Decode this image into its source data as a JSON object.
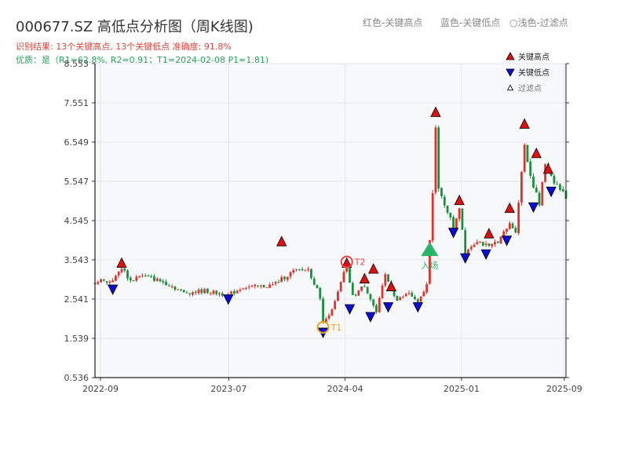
{
  "header": {
    "title": "000677.SZ 高低点分析图（周K线图)",
    "legend_red": "红色-关键高点",
    "legend_blue": "蓝色-关键低点",
    "legend_circle": "○浅色-过滤点",
    "info_line1": "识别结果: 13个关键高点, 13个关键低点  准确度: 91.8%",
    "info_line2": "优质：是（R1=62.8%, R2=0.91；T1=2024-02-08 P1=1.81)"
  },
  "colors": {
    "up": "#e0312b",
    "down": "#1a8f3c",
    "high_marker": "#e01010",
    "low_marker": "#0a0ad8",
    "t1": "#f0a020",
    "t2": "#e54545",
    "entry": "#2bb36a",
    "grid": "#e3e6ea",
    "plot_bg": "#f7f8fa"
  },
  "chart_data": {
    "type": "candlestick",
    "title": "000677.SZ 高低点分析图（周K线图)",
    "xlabel": "",
    "ylabel": "",
    "ylim": [
      0.536,
      8.553
    ],
    "yticks": [
      0.536,
      1.539,
      2.541,
      3.543,
      4.545,
      5.547,
      6.549,
      7.551,
      8.553
    ],
    "ytick_labels": [
      "0.536",
      "1.539",
      "2.541",
      "3.543",
      "4.545",
      "5.547",
      "6.549",
      "7.551",
      "8.553"
    ],
    "x_start": "2022-08-19",
    "x_end": "2025-09-05",
    "xticks": [
      {
        "date": "2022-09-01",
        "label": "2022-09"
      },
      {
        "date": "2023-07-01",
        "label": "2023-07"
      },
      {
        "date": "2024-04-01",
        "label": "2024-04"
      },
      {
        "date": "2025-01-01",
        "label": "2025-01"
      },
      {
        "date": "2025-09-01",
        "label": "2025-09"
      }
    ],
    "grid": true,
    "legend": {
      "position": "top-right",
      "entries": [
        "关键高点",
        "关键低点",
        "过滤点"
      ]
    },
    "price_path": [
      [
        "2022-08-19",
        2.95
      ],
      [
        "2022-09-09",
        3.05
      ],
      [
        "2022-09-16",
        2.95
      ],
      [
        "2022-10-07",
        3.1
      ],
      [
        "2022-10-21",
        3.35
      ],
      [
        "2022-11-11",
        3.0
      ],
      [
        "2022-12-02",
        3.15
      ],
      [
        "2022-12-23",
        3.1
      ],
      [
        "2023-02-03",
        2.95
      ],
      [
        "2023-03-17",
        2.7
      ],
      [
        "2023-05-05",
        2.75
      ],
      [
        "2023-06-30",
        2.64
      ],
      [
        "2023-08-04",
        2.85
      ],
      [
        "2023-09-08",
        2.85
      ],
      [
        "2023-10-13",
        2.9
      ],
      [
        "2023-11-10",
        3.1
      ],
      [
        "2023-12-01",
        3.25
      ],
      [
        "2024-01-05",
        3.3
      ],
      [
        "2024-02-02",
        2.6
      ],
      [
        "2024-02-09",
        1.9
      ],
      [
        "2024-03-08",
        2.45
      ],
      [
        "2024-03-29",
        3.2
      ],
      [
        "2024-04-05",
        3.35
      ],
      [
        "2024-04-19",
        2.6
      ],
      [
        "2024-05-17",
        2.9
      ],
      [
        "2024-06-14",
        2.2
      ],
      [
        "2024-07-05",
        3.15
      ],
      [
        "2024-08-02",
        2.5
      ],
      [
        "2024-08-30",
        2.7
      ],
      [
        "2024-09-20",
        2.42
      ],
      [
        "2024-10-11",
        2.9
      ],
      [
        "2024-10-25",
        5.3
      ],
      [
        "2024-11-01",
        6.9
      ],
      [
        "2024-11-08",
        5.3
      ],
      [
        "2024-11-29",
        4.8
      ],
      [
        "2024-12-13",
        4.35
      ],
      [
        "2024-12-27",
        4.9
      ],
      [
        "2025-01-10",
        3.75
      ],
      [
        "2025-02-07",
        4.05
      ],
      [
        "2025-03-07",
        3.85
      ],
      [
        "2025-04-04",
        4.1
      ],
      [
        "2025-04-25",
        4.45
      ],
      [
        "2025-05-09",
        4.3
      ],
      [
        "2025-05-30",
        6.5
      ],
      [
        "2025-06-13",
        5.7
      ],
      [
        "2025-07-04",
        4.95
      ],
      [
        "2025-07-18",
        6.0
      ],
      [
        "2025-08-08",
        5.55
      ],
      [
        "2025-08-29",
        5.25
      ],
      [
        "2025-09-05",
        5.15
      ]
    ],
    "key_highs": [
      {
        "date": "2022-10-21",
        "value": 3.45
      },
      {
        "date": "2023-11-03",
        "value": 4.0
      },
      {
        "date": "2024-04-05",
        "value": 3.45
      },
      {
        "date": "2024-05-17",
        "value": 3.05
      },
      {
        "date": "2024-06-07",
        "value": 3.3
      },
      {
        "date": "2024-07-19",
        "value": 2.85
      },
      {
        "date": "2024-11-01",
        "value": 7.3
      },
      {
        "date": "2024-12-27",
        "value": 5.05
      },
      {
        "date": "2025-03-07",
        "value": 4.2
      },
      {
        "date": "2025-04-25",
        "value": 4.85
      },
      {
        "date": "2025-05-30",
        "value": 7.0
      },
      {
        "date": "2025-06-27",
        "value": 6.25
      },
      {
        "date": "2025-07-25",
        "value": 5.85
      }
    ],
    "key_lows": [
      {
        "date": "2022-09-30",
        "value": 2.8
      },
      {
        "date": "2023-06-30",
        "value": 2.55
      },
      {
        "date": "2024-02-09",
        "value": 1.7
      },
      {
        "date": "2024-04-12",
        "value": 2.3
      },
      {
        "date": "2024-05-31",
        "value": 2.1
      },
      {
        "date": "2024-07-12",
        "value": 2.35
      },
      {
        "date": "2024-09-20",
        "value": 2.35
      },
      {
        "date": "2024-12-13",
        "value": 4.25
      },
      {
        "date": "2025-01-10",
        "value": 3.6
      },
      {
        "date": "2025-02-28",
        "value": 3.7
      },
      {
        "date": "2025-04-18",
        "value": 4.05
      },
      {
        "date": "2025-06-20",
        "value": 4.9
      },
      {
        "date": "2025-08-01",
        "value": 5.3
      }
    ],
    "points": [
      {
        "label": "T1",
        "date": "2024-02-09",
        "value": 1.8
      },
      {
        "label": "T2",
        "date": "2024-04-05",
        "value": 3.45
      }
    ],
    "entry": {
      "label": "入场",
      "date": "2024-10-18",
      "value": 3.8
    }
  }
}
